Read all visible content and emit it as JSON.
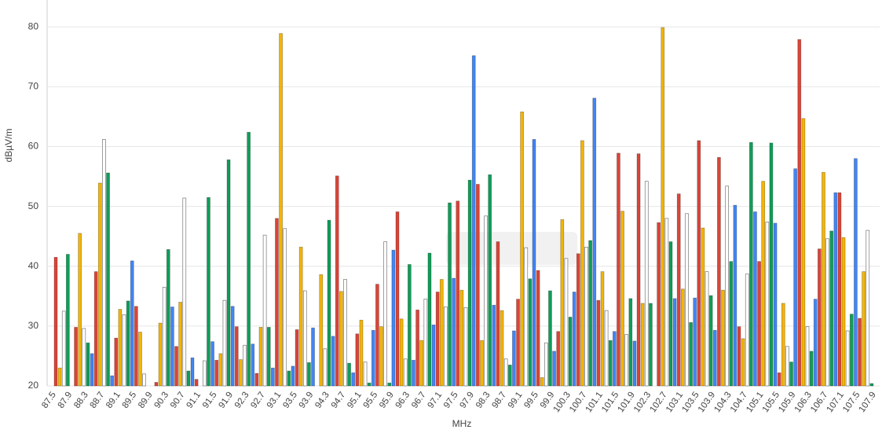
{
  "chart_data": {
    "type": "bar",
    "x_label": "MHz",
    "y_label": "dBµV/m",
    "categories": [
      "87.5",
      null,
      null,
      null,
      "87.9",
      null,
      null,
      null,
      "88.3",
      null,
      null,
      null,
      "88.7",
      null,
      null,
      null,
      "89.1",
      null,
      null,
      null,
      "89.5",
      null,
      null,
      null,
      "89.9",
      null,
      null,
      null,
      "90.3",
      null,
      null,
      null,
      "90.7",
      null,
      null,
      null,
      "91.1",
      null,
      null,
      null,
      "91.5",
      null,
      null,
      null,
      "91.9",
      null,
      null,
      null,
      "92.3",
      null,
      null,
      null,
      "92.7",
      null,
      null,
      null,
      "93.1",
      null,
      null,
      null,
      "93.5",
      null,
      null,
      null,
      "93.9",
      null,
      null,
      null,
      "94.3",
      null,
      null,
      null,
      "94.7",
      null,
      null,
      null,
      "95.1",
      null,
      null,
      null,
      "95.5",
      null,
      null,
      null,
      "95.9",
      null,
      null,
      null,
      "96.3",
      null,
      null,
      null,
      "96.7",
      null,
      null,
      null,
      "97.1",
      null,
      null,
      null,
      "97.5",
      null,
      null,
      null,
      "97.9",
      null,
      null,
      null,
      "98.3",
      null,
      null,
      null,
      "98.7",
      null,
      null,
      null,
      "99.1",
      null,
      null,
      null,
      "99.5",
      null,
      null,
      null,
      "99.9",
      null,
      null,
      null,
      "100.3",
      null,
      null,
      null,
      "100.7",
      null,
      null,
      null,
      "101.1",
      null,
      null,
      null,
      "101.5",
      null,
      null,
      null,
      "101.9",
      null,
      null,
      null,
      "102.3",
      null,
      null,
      null,
      "102.7",
      null,
      null,
      null,
      "103.1",
      null,
      null,
      null,
      "103.5",
      null,
      null,
      null,
      "103.9",
      null,
      null,
      null,
      "104.3",
      null,
      null,
      null,
      "104.7",
      null,
      null,
      null,
      "105.1",
      null,
      null,
      null,
      "105.5",
      null,
      null,
      null,
      "105.9",
      null,
      null,
      null,
      "106.3",
      null,
      null,
      null,
      "106.7",
      null,
      null,
      null,
      "107.1",
      null,
      null,
      null,
      "107.5",
      null,
      null,
      null,
      "107.9"
    ],
    "values": [
      41.5,
      23,
      32.5,
      42,
      null,
      29.8,
      45.5,
      29.6,
      27.2,
      25.4,
      39.1,
      53.9,
      61.2,
      55.6,
      21.7,
      28,
      32.8,
      31.9,
      34.2,
      40.9,
      33.3,
      29,
      22,
      null,
      null,
      20.6,
      30.5,
      36.5,
      42.8,
      33.2,
      26.6,
      34,
      51.4,
      22.5,
      24.7,
      21.1,
      null,
      24.2,
      51.5,
      27.4,
      24.3,
      25.4,
      34.3,
      57.8,
      33.3,
      29.9,
      24.4,
      26.8,
      62.4,
      27,
      22.1,
      29.8,
      45.2,
      29.8,
      23,
      48,
      78.9,
      46.3,
      22.5,
      23.3,
      29.4,
      43.2,
      35.9,
      23.9,
      29.7,
      null,
      38.6,
      26.2,
      47.7,
      28.3,
      55.1,
      35.8,
      37.8,
      23.8,
      22.2,
      28.7,
      31,
      24,
      20.5,
      29.3,
      37,
      29.9,
      44.1,
      20.5,
      42.7,
      49.1,
      31.2,
      24.5,
      40.3,
      24.3,
      32.7,
      27.6,
      34.5,
      42.2,
      30.2,
      35.7,
      37.8,
      33.2,
      50.6,
      38,
      50.9,
      36,
      33.1,
      54.4,
      75.2,
      53.7,
      27.6,
      48.4,
      55.3,
      33.5,
      44.1,
      32.6,
      24.5,
      23.5,
      29.2,
      34.5,
      65.8,
      43.1,
      37.9,
      61.2,
      39.3,
      21.4,
      27.2,
      35.9,
      25.8,
      29.1,
      47.8,
      41.3,
      31.5,
      35.7,
      42.1,
      61,
      43.2,
      44.3,
      68.1,
      34.3,
      39.1,
      32.6,
      27.6,
      29.1,
      58.9,
      49.2,
      28.6,
      34.6,
      27.5,
      58.8,
      33.8,
      54.2,
      33.8,
      null,
      47.3,
      79.9,
      48,
      44.1,
      34.6,
      52.1,
      36.2,
      48.8,
      30.6,
      34.7,
      61,
      46.4,
      39.1,
      35.1,
      29.3,
      58.2,
      36,
      53.4,
      40.8,
      50.2,
      29.9,
      27.9,
      38.7,
      60.7,
      49.1,
      40.8,
      54.2,
      47.4,
      60.6,
      47.2,
      22.2,
      33.8,
      26.6,
      24,
      56.3,
      77.9,
      64.7,
      29.9,
      25.8,
      34.5,
      42.9,
      55.7,
      44.6,
      45.9,
      52.3,
      52.3,
      44.8,
      29.2,
      32,
      58,
      31.3,
      39.1,
      46,
      20.4,
      null
    ],
    "colors": [
      "#db4437",
      "#f4b400",
      "#ffffff",
      "#0f9d58",
      "#4285f4"
    ],
    "ylim": [
      20,
      84.5
    ],
    "yticks": [
      20,
      30,
      40,
      50,
      60,
      70,
      80
    ],
    "grid": true
  }
}
